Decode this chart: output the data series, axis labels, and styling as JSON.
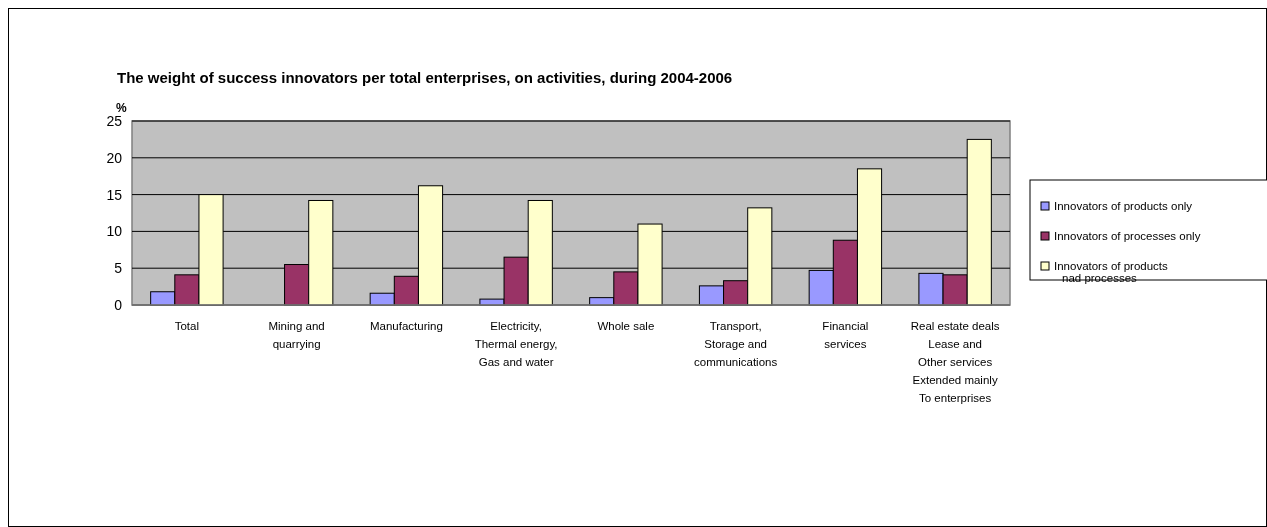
{
  "chart_data": {
    "type": "bar",
    "title": "The weight of success innovators per total enterprises, on activities, during 2004-2006",
    "ylabel": "%",
    "categories": [
      "Total",
      "Mining and\nquarrying",
      "Manufacturing",
      "Electricity,\nThermal energy,\nGas and water",
      "Whole sale",
      "Transport,\nStorage and\ncommunications",
      "Financial\nservices",
      "Real estate deals\nLease and\nOther services\nExtended mainly\nTo enterprises"
    ],
    "series": [
      {
        "name": "Innovators of products only",
        "color": "#9999ff",
        "values": [
          1.8,
          null,
          1.6,
          0.8,
          1.0,
          2.6,
          4.7,
          4.3
        ]
      },
      {
        "name": "Innovators of processes only",
        "color": "#993366",
        "values": [
          4.1,
          5.5,
          3.9,
          6.5,
          4.5,
          3.3,
          8.8,
          4.1
        ]
      },
      {
        "name": "Innovators of products\nnad processes",
        "color": "#ffffcc",
        "values": [
          15,
          14.2,
          16.2,
          14.2,
          11.0,
          13.2,
          18.5,
          22.5
        ]
      }
    ],
    "ylim": [
      0,
      25
    ],
    "yticks": [
      0,
      5,
      10,
      15,
      20,
      25
    ],
    "grid": "y",
    "legend": "right"
  }
}
